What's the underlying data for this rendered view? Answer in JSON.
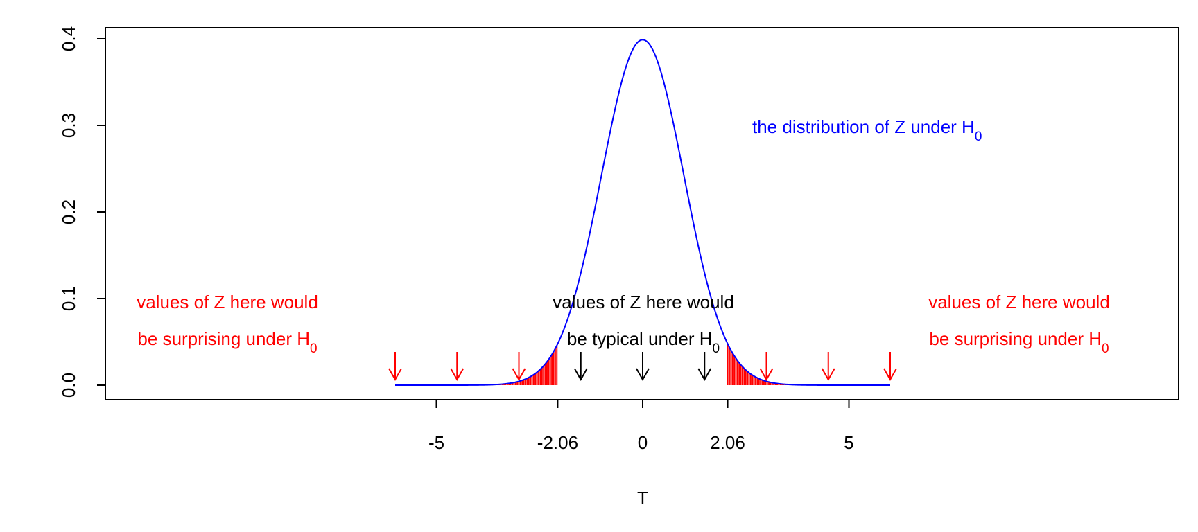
{
  "chart_data": {
    "type": "line",
    "title": "",
    "xlabel": "T",
    "ylabel": "",
    "xlim": [
      -6,
      6
    ],
    "ylim": [
      0,
      0.4
    ],
    "grid": false,
    "x_ticks": [
      {
        "value": -5,
        "label": "-5"
      },
      {
        "value": -2.06,
        "label": "-2.06"
      },
      {
        "value": 0,
        "label": "0"
      },
      {
        "value": 2.06,
        "label": "2.06"
      },
      {
        "value": 5,
        "label": "5"
      }
    ],
    "y_ticks": [
      {
        "value": 0.0,
        "label": "0.0"
      },
      {
        "value": 0.1,
        "label": "0.1"
      },
      {
        "value": 0.2,
        "label": "0.2"
      },
      {
        "value": 0.3,
        "label": "0.3"
      },
      {
        "value": 0.4,
        "label": "0.4"
      }
    ],
    "curve": {
      "x": [
        -6,
        -5.5,
        -5,
        -4.5,
        -4,
        -3.75,
        -3.5,
        -3.25,
        -3,
        -2.75,
        -2.5,
        -2.25,
        -2,
        -1.75,
        -1.5,
        -1.25,
        -1,
        -0.75,
        -0.5,
        -0.25,
        0,
        0.25,
        0.5,
        0.75,
        1,
        1.25,
        1.5,
        1.75,
        2,
        2.25,
        2.5,
        2.75,
        3,
        3.25,
        3.5,
        3.75,
        4,
        4.5,
        5,
        5.5,
        6
      ],
      "y": [
        0,
        0,
        1.5e-06,
        1.6e-05,
        0.000134,
        0.000353,
        0.000873,
        0.00203,
        0.00443,
        0.00909,
        0.01753,
        0.03174,
        0.05399,
        0.08628,
        0.12952,
        0.18265,
        0.24197,
        0.30114,
        0.35207,
        0.38667,
        0.39894,
        0.38667,
        0.35207,
        0.30114,
        0.24197,
        0.18265,
        0.12952,
        0.08628,
        0.05399,
        0.03174,
        0.01753,
        0.00909,
        0.00443,
        0.00203,
        0.000873,
        0.000353,
        0.000134,
        1.6e-05,
        1.5e-06,
        0,
        0
      ],
      "color": "#0000ff"
    },
    "rejection_regions": {
      "color": "#ff0000",
      "left": [
        -6,
        -2.06
      ],
      "right": [
        2.06,
        6
      ]
    },
    "arrows": [
      {
        "x": -6,
        "color": "#ff0000"
      },
      {
        "x": -4.5,
        "color": "#ff0000"
      },
      {
        "x": -3,
        "color": "#ff0000"
      },
      {
        "x": -1.5,
        "color": "#000000"
      },
      {
        "x": 0,
        "color": "#000000"
      },
      {
        "x": 1.5,
        "color": "#000000"
      },
      {
        "x": 3,
        "color": "#ff0000"
      },
      {
        "x": 4.5,
        "color": "#ff0000"
      },
      {
        "x": 6,
        "color": "#ff0000"
      }
    ],
    "annotations": {
      "distribution": {
        "text": "the distribution of Z under H",
        "sub": "0",
        "color": "#0000ff"
      },
      "left_line1": {
        "text": "values of Z here would",
        "color": "#ff0000"
      },
      "left_line2": {
        "text": "be surprising under H",
        "sub": "0",
        "color": "#ff0000"
      },
      "mid_line1": {
        "text": "values of Z here would",
        "color": "#000000"
      },
      "mid_line2": {
        "text": "be typical under H",
        "sub": "0",
        "color": "#000000"
      },
      "right_line1": {
        "text": "values of Z here would",
        "color": "#ff0000"
      },
      "right_line2": {
        "text": "be surprising under H",
        "sub": "0",
        "color": "#ff0000"
      }
    }
  }
}
